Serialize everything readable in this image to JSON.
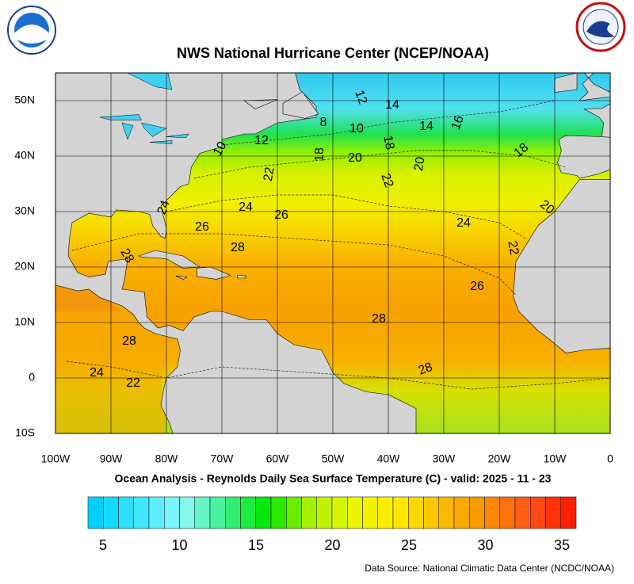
{
  "title": "NWS National Hurricane Center (NCEP/NOAA)",
  "subtitle": "Ocean Analysis - Reynolds Daily Sea Surface Temperature (C) - valid: 2025 - 11 - 23",
  "source": "Data Source: National Climatic Data Center (NCDC/NOAA)",
  "x_labels": [
    "100W",
    "90W",
    "80W",
    "70W",
    "60W",
    "50W",
    "40W",
    "30W",
    "20W",
    "10W",
    "0"
  ],
  "y_labels": [
    "50N",
    "40N",
    "30N",
    "20N",
    "10N",
    "0",
    "10S"
  ],
  "contour_labels": [
    "12",
    "14",
    "8",
    "10",
    "14",
    "16",
    "12",
    "10",
    "18",
    "18",
    "20",
    "20",
    "18",
    "22",
    "22",
    "24",
    "24",
    "26",
    "20",
    "26",
    "24",
    "28",
    "22",
    "28",
    "26",
    "28",
    "28",
    "28",
    "24",
    "22"
  ],
  "colorbar_labels": [
    "5",
    "10",
    "15",
    "20",
    "25",
    "30",
    "35"
  ]
}
